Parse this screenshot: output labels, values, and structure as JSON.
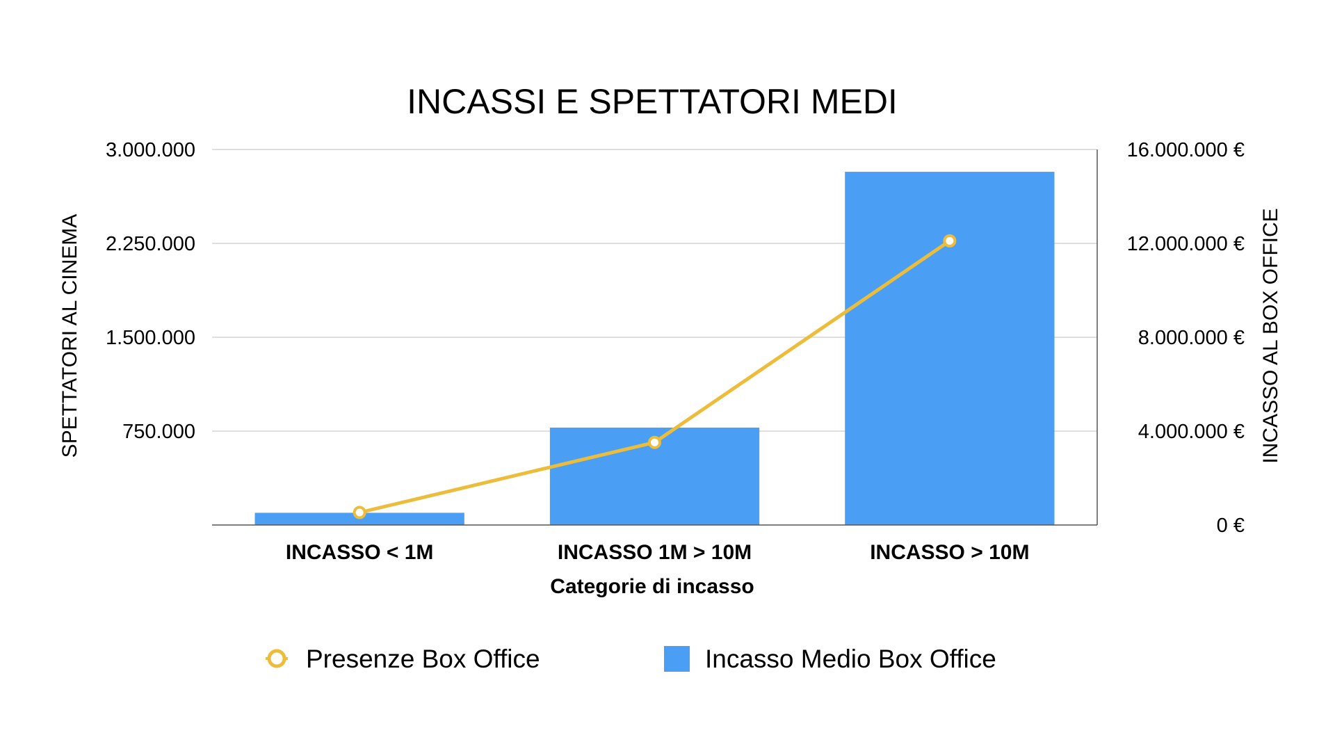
{
  "chart_data": {
    "type": "bar",
    "title": "INCASSI E SPETTATORI MEDI",
    "xlabel": "Categorie di incasso",
    "ylabel_left": "SPETTATORI AL CINEMA",
    "ylabel_right": "INCASSO AL BOX OFFICE",
    "categories": [
      "INCASSO < 1M",
      "INCASSO 1M > 10M",
      "INCASSO > 10M"
    ],
    "ylim_left": [
      0,
      3000000
    ],
    "ylim_right": [
      0,
      16000000
    ],
    "yticks_left": [
      "",
      "750.000",
      "1.500.000",
      "2.250.000",
      "3.000.000"
    ],
    "yticks_right": [
      "0 €",
      "4.000.000 €",
      "8.000.000 €",
      "12.000.000 €",
      "16.000.000 €"
    ],
    "grid": true,
    "legend_position": "bottom",
    "series": [
      {
        "name": "Presenze Box Office",
        "type": "line",
        "axis": "left",
        "color": "#ebbd3b",
        "values": [
          100000,
          660000,
          2270000
        ]
      },
      {
        "name": "Incasso Medio Box Office",
        "type": "bar",
        "axis": "right",
        "color": "#4a9ff5",
        "values": [
          520000,
          4150000,
          15050000
        ]
      }
    ]
  }
}
